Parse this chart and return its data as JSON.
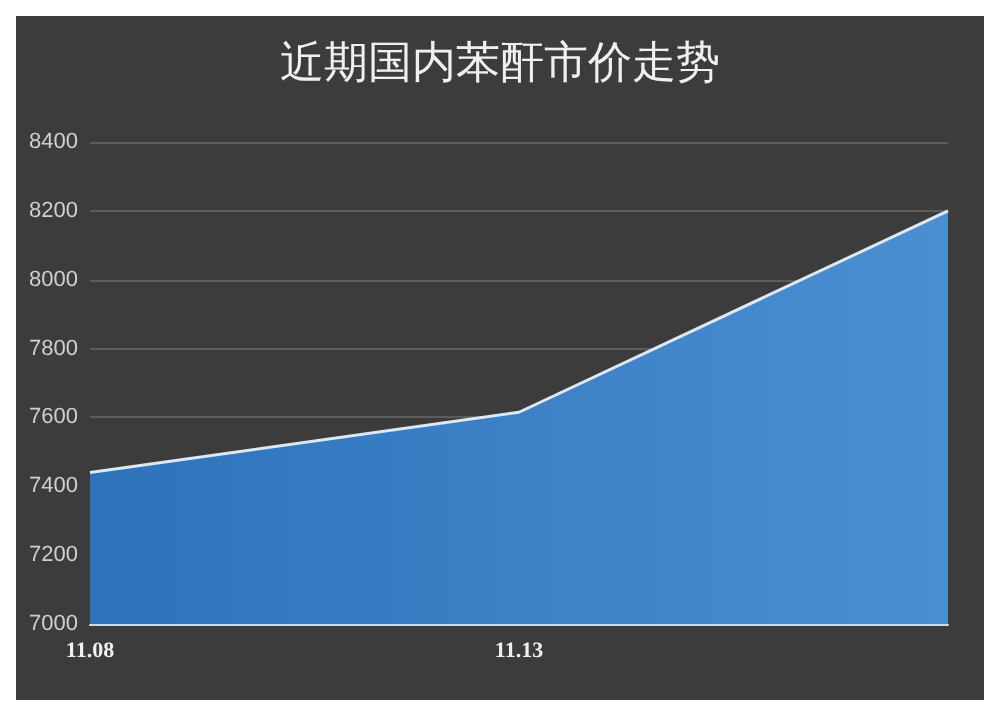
{
  "chart_data": {
    "type": "area",
    "title": "近期国内苯酐市价走势",
    "categories": [
      "11.08",
      "11.13",
      null
    ],
    "series": [
      {
        "color": "#4a8fd2",
        "values": [
          7440,
          7615,
          8200
        ]
      }
    ],
    "ylim": [
      7000,
      8400
    ],
    "yticks": [
      7000,
      7200,
      7400,
      7600,
      7800,
      8000,
      8200,
      8400
    ],
    "grid": "y",
    "marker": "none"
  }
}
